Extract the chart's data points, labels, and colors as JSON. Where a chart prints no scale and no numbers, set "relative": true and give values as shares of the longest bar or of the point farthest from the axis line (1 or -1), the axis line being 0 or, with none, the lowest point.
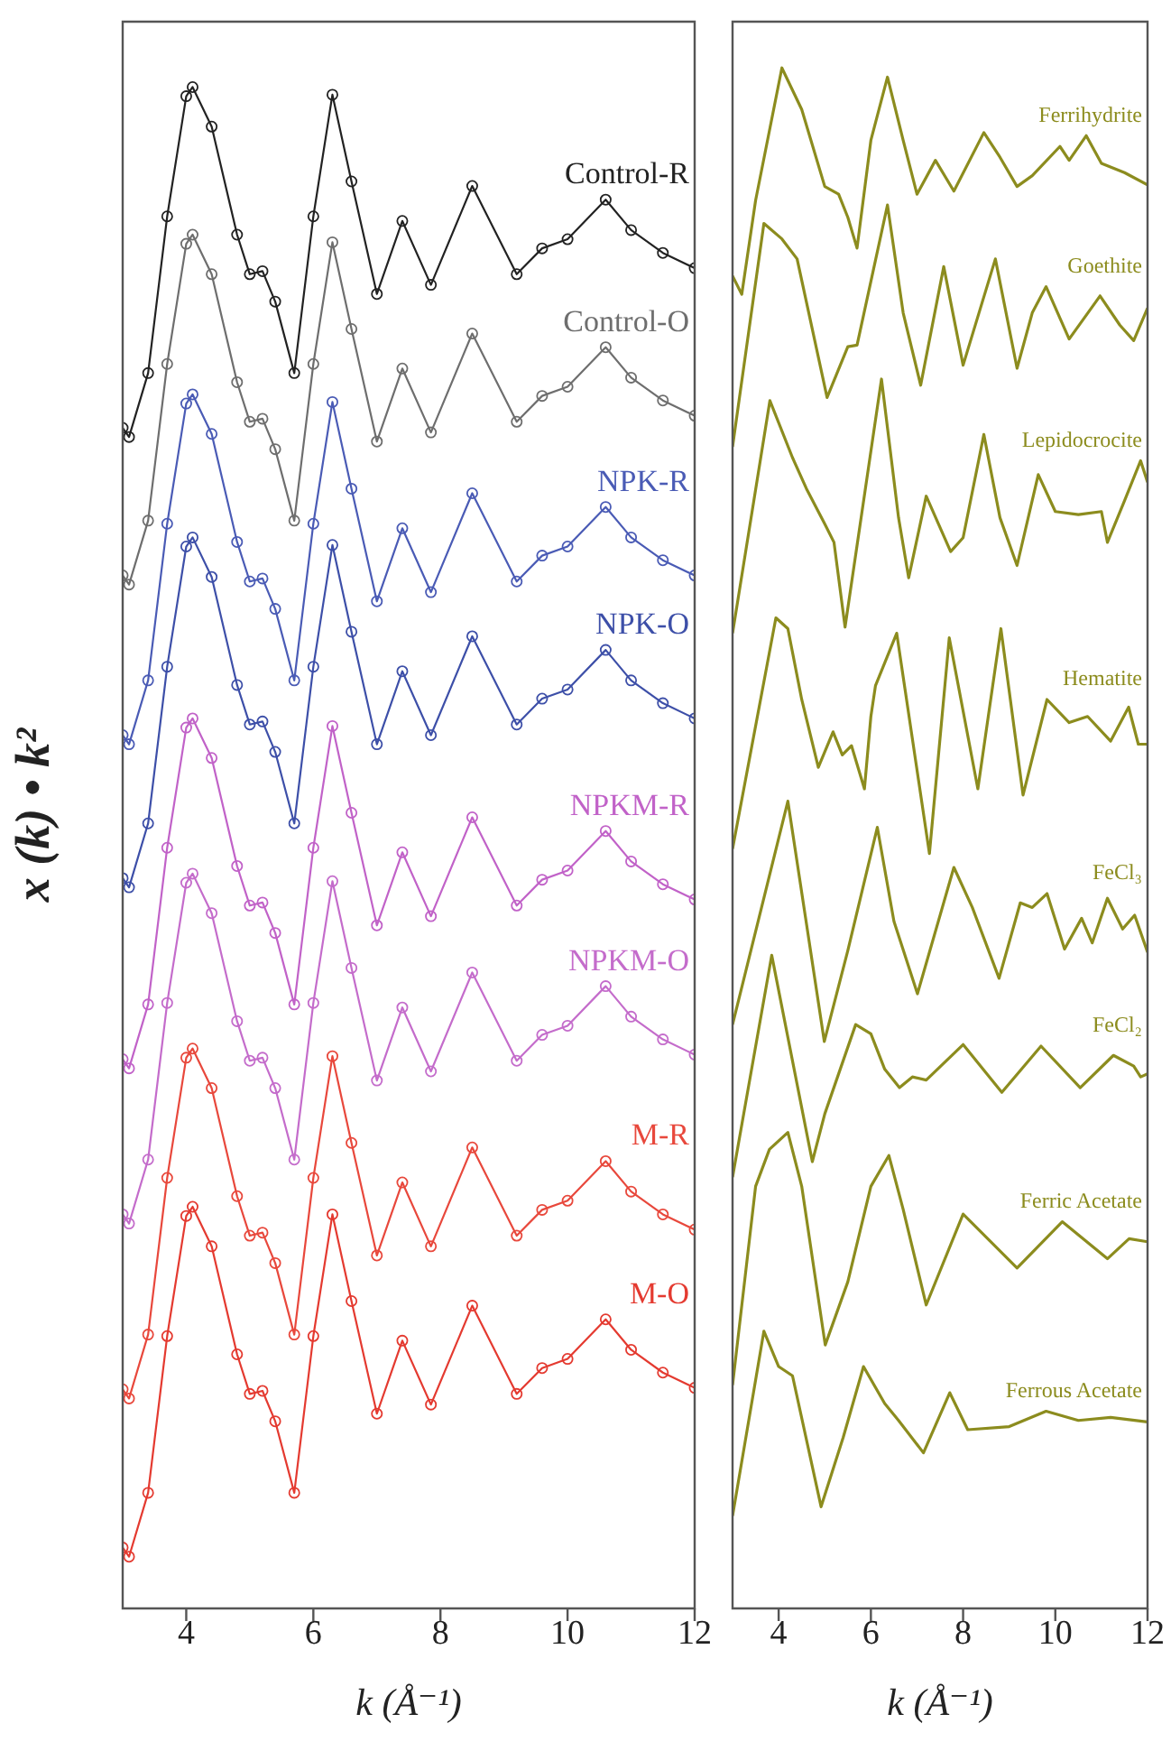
{
  "chart_data": [
    {
      "type": "line",
      "relative": true,
      "xlabel": "k (Å⁻¹)",
      "ylabel": "x (k) • k²",
      "xlim": [
        3,
        12
      ],
      "xticks": [
        4,
        6,
        8,
        10,
        12
      ],
      "tick_labels": "x",
      "marker": "circle",
      "x": [
        3,
        3.1,
        3.4,
        3.7,
        4,
        4.1,
        4.4,
        4.8,
        5,
        5.2,
        5.4,
        5.7,
        6,
        6.3,
        6.6,
        7,
        7.4,
        7.85,
        8.5,
        9.2,
        9.6,
        10,
        10.6,
        11,
        11.5,
        12
      ],
      "series": [
        {
          "name": "Control-R",
          "color": "#222222",
          "values": [
            0.776,
            0.77,
            0.812,
            0.915,
            0.994,
            1.0,
            0.974,
            0.903,
            0.877,
            0.879,
            0.859,
            0.812,
            0.915,
            0.995,
            0.938,
            0.864,
            0.912,
            0.87,
            0.935,
            0.877,
            0.894,
            0.9,
            0.926,
            0.906,
            0.891,
            0.881
          ]
        },
        {
          "name": "Control-O",
          "color": "#6e6e6e",
          "values": [
            0.679,
            0.673,
            0.715,
            0.818,
            0.897,
            0.903,
            0.877,
            0.806,
            0.78,
            0.782,
            0.762,
            0.715,
            0.818,
            0.898,
            0.841,
            0.767,
            0.815,
            0.773,
            0.838,
            0.78,
            0.797,
            0.803,
            0.829,
            0.809,
            0.794,
            0.784
          ]
        },
        {
          "name": "NPK-R",
          "color": "#4a5bb5",
          "values": [
            0.574,
            0.568,
            0.61,
            0.713,
            0.792,
            0.798,
            0.772,
            0.701,
            0.675,
            0.677,
            0.657,
            0.61,
            0.713,
            0.793,
            0.736,
            0.662,
            0.71,
            0.668,
            0.733,
            0.675,
            0.692,
            0.698,
            0.724,
            0.704,
            0.689,
            0.679
          ]
        },
        {
          "name": "NPK-O",
          "color": "#3d4fa8",
          "values": [
            0.48,
            0.474,
            0.516,
            0.619,
            0.698,
            0.704,
            0.678,
            0.607,
            0.581,
            0.583,
            0.563,
            0.516,
            0.619,
            0.699,
            0.642,
            0.568,
            0.616,
            0.574,
            0.639,
            0.581,
            0.598,
            0.604,
            0.63,
            0.61,
            0.595,
            0.585
          ]
        },
        {
          "name": "NPKM-R",
          "color": "#c162c8",
          "values": [
            0.361,
            0.355,
            0.397,
            0.5,
            0.579,
            0.585,
            0.559,
            0.488,
            0.462,
            0.464,
            0.444,
            0.397,
            0.5,
            0.58,
            0.523,
            0.449,
            0.497,
            0.455,
            0.52,
            0.462,
            0.479,
            0.485,
            0.511,
            0.491,
            0.476,
            0.466
          ]
        },
        {
          "name": "NPKM-O",
          "color": "#c46ccb",
          "values": [
            0.259,
            0.253,
            0.295,
            0.398,
            0.477,
            0.483,
            0.457,
            0.386,
            0.36,
            0.362,
            0.342,
            0.295,
            0.398,
            0.478,
            0.421,
            0.347,
            0.395,
            0.353,
            0.418,
            0.36,
            0.377,
            0.383,
            0.409,
            0.389,
            0.374,
            0.364
          ]
        },
        {
          "name": "M-R",
          "color": "#e8483c",
          "values": [
            0.144,
            0.138,
            0.18,
            0.283,
            0.362,
            0.368,
            0.342,
            0.271,
            0.245,
            0.247,
            0.227,
            0.18,
            0.283,
            0.363,
            0.306,
            0.232,
            0.28,
            0.238,
            0.303,
            0.245,
            0.262,
            0.268,
            0.294,
            0.274,
            0.259,
            0.249
          ]
        },
        {
          "name": "M-O",
          "color": "#e43a30",
          "values": [
            0.04,
            0.034,
            0.076,
            0.179,
            0.258,
            0.264,
            0.238,
            0.167,
            0.141,
            0.143,
            0.123,
            0.076,
            0.179,
            0.259,
            0.202,
            0.128,
            0.176,
            0.134,
            0.199,
            0.141,
            0.158,
            0.164,
            0.19,
            0.17,
            0.155,
            0.145
          ]
        }
      ]
    },
    {
      "type": "line",
      "relative": true,
      "xlabel": "k (Å⁻¹)",
      "xlim": [
        3,
        12
      ],
      "xticks": [
        4,
        6,
        8,
        10,
        12
      ],
      "tick_labels": "x",
      "series": [
        {
          "name": "Ferrihydrite",
          "color": "#8c8c1e",
          "x": [
            3,
            3.2,
            3.5,
            4.07,
            4.5,
            5,
            5.3,
            5.5,
            5.7,
            6,
            6.36,
            6.7,
            7,
            7.4,
            7.8,
            8.45,
            8.8,
            9.17,
            9.5,
            10.1,
            10.3,
            10.67,
            11,
            11.5,
            12
          ],
          "values": [
            0.865,
            0.853,
            0.914,
            1.0,
            0.973,
            0.923,
            0.918,
            0.903,
            0.883,
            0.953,
            0.994,
            0.953,
            0.918,
            0.94,
            0.92,
            0.958,
            0.942,
            0.923,
            0.93,
            0.949,
            0.94,
            0.956,
            0.938,
            0.932,
            0.924
          ]
        },
        {
          "name": "Goethite",
          "color": "#8c8c1e",
          "x": [
            3,
            3.68,
            4.07,
            4.4,
            5.05,
            5.5,
            5.7,
            6.36,
            6.7,
            7.08,
            7.58,
            8,
            8.7,
            9.17,
            9.5,
            9.8,
            10.3,
            10.97,
            11.4,
            11.7,
            12
          ],
          "values": [
            0.754,
            0.899,
            0.889,
            0.876,
            0.786,
            0.819,
            0.82,
            0.911,
            0.841,
            0.794,
            0.871,
            0.807,
            0.876,
            0.805,
            0.841,
            0.858,
            0.824,
            0.852,
            0.833,
            0.823,
            0.844
          ]
        },
        {
          "name": "Lepidocrocite",
          "color": "#8c8c1e",
          "x": [
            3,
            3.81,
            4.3,
            4.6,
            5,
            5.2,
            5.44,
            6.23,
            6.6,
            6.82,
            7.2,
            7.73,
            8,
            8.45,
            8.8,
            9.17,
            9.63,
            10,
            10.5,
            11,
            11.13,
            11.5,
            11.85,
            12
          ],
          "values": [
            0.633,
            0.784,
            0.747,
            0.727,
            0.704,
            0.692,
            0.637,
            0.798,
            0.708,
            0.669,
            0.722,
            0.686,
            0.695,
            0.762,
            0.708,
            0.677,
            0.736,
            0.712,
            0.71,
            0.712,
            0.692,
            0.719,
            0.745,
            0.731
          ]
        },
        {
          "name": "Hematite",
          "color": "#8c8c1e",
          "x": [
            3,
            3.94,
            4.2,
            4.5,
            4.86,
            5.18,
            5.38,
            5.58,
            5.86,
            6,
            6.1,
            6.56,
            7.27,
            7.7,
            8.32,
            8.82,
            9.3,
            9.82,
            10.3,
            10.7,
            11.2,
            11.59,
            11.8,
            12
          ],
          "values": [
            0.493,
            0.643,
            0.636,
            0.59,
            0.546,
            0.569,
            0.554,
            0.56,
            0.532,
            0.579,
            0.599,
            0.633,
            0.49,
            0.63,
            0.532,
            0.636,
            0.528,
            0.59,
            0.575,
            0.579,
            0.563,
            0.585,
            0.561,
            0.561
          ]
        },
        {
          "name": "FeCl₃",
          "color": "#8c8c1e",
          "x": [
            3,
            4.2,
            4.99,
            5.5,
            6.14,
            6.5,
            7.01,
            7.8,
            8.2,
            8.78,
            9.24,
            9.5,
            9.82,
            10.2,
            10.57,
            10.8,
            11.13,
            11.46,
            11.72,
            12
          ],
          "values": [
            0.379,
            0.524,
            0.368,
            0.427,
            0.507,
            0.446,
            0.399,
            0.481,
            0.455,
            0.409,
            0.458,
            0.455,
            0.464,
            0.428,
            0.448,
            0.432,
            0.461,
            0.441,
            0.45,
            0.426
          ]
        },
        {
          "name": "FeCl₂",
          "color": "#8c8c1e",
          "x": [
            3,
            3.85,
            4.73,
            5,
            5.67,
            6,
            6.3,
            6.62,
            6.9,
            7.2,
            8,
            8.84,
            9.69,
            10.54,
            11.26,
            11.7,
            11.85,
            12
          ],
          "values": [
            0.28,
            0.424,
            0.29,
            0.321,
            0.379,
            0.373,
            0.35,
            0.338,
            0.345,
            0.343,
            0.366,
            0.335,
            0.365,
            0.338,
            0.359,
            0.352,
            0.345,
            0.347
          ]
        },
        {
          "name": "Ferric Acetate",
          "color": "#8c8c1e",
          "x": [
            3,
            3.5,
            3.8,
            4.2,
            4.5,
            5.01,
            5.5,
            6,
            6.39,
            6.7,
            7.2,
            8,
            9.17,
            10.15,
            11.13,
            11.6,
            12
          ],
          "values": [
            0.145,
            0.274,
            0.298,
            0.309,
            0.274,
            0.171,
            0.212,
            0.274,
            0.294,
            0.259,
            0.197,
            0.256,
            0.221,
            0.251,
            0.227,
            0.24,
            0.238
          ]
        },
        {
          "name": "Ferrous Acetate",
          "color": "#8c8c1e",
          "x": [
            3,
            3.68,
            4,
            4.3,
            4.92,
            5.4,
            5.84,
            6.3,
            6.6,
            7.14,
            7.71,
            8.1,
            9,
            9.8,
            10.5,
            11.2,
            12
          ],
          "values": [
            0.06,
            0.18,
            0.157,
            0.151,
            0.066,
            0.111,
            0.157,
            0.133,
            0.122,
            0.101,
            0.14,
            0.116,
            0.118,
            0.128,
            0.122,
            0.124,
            0.121
          ]
        }
      ]
    }
  ]
}
